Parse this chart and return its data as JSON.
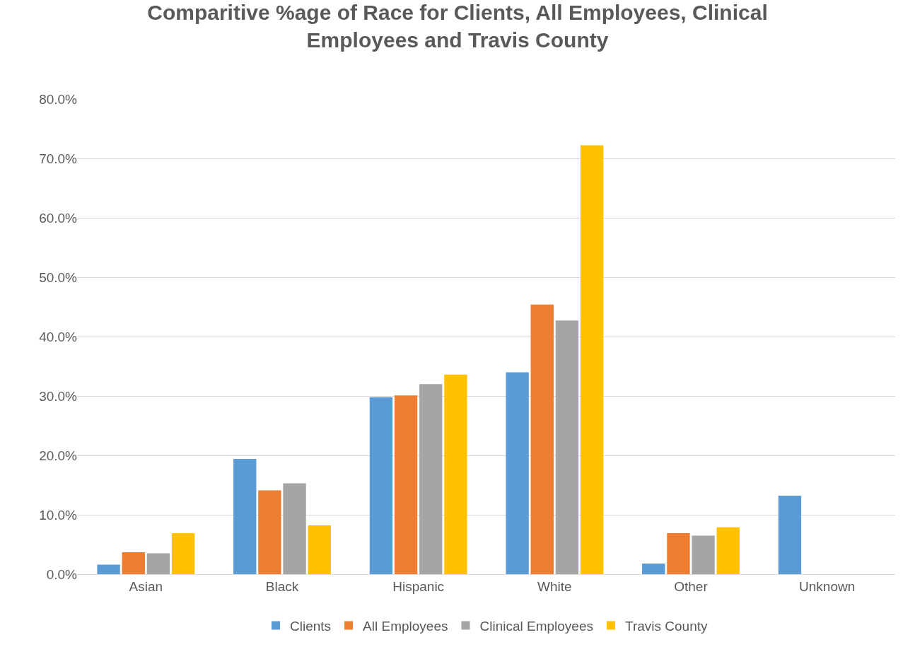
{
  "chart_data": {
    "type": "bar",
    "title": "Comparitive %age of Race for Clients, All Employees, Clinical\nEmployees and Travis County",
    "categories": [
      "Asian",
      "Black",
      "Hispanic",
      "White",
      "Other",
      "Unknown"
    ],
    "series": [
      {
        "name": "Clients",
        "color": "#5b9bd5",
        "values": [
          1.6,
          19.4,
          29.8,
          34.0,
          1.8,
          13.2
        ]
      },
      {
        "name": "All Employees",
        "color": "#ed7d31",
        "values": [
          3.7,
          14.1,
          30.1,
          45.4,
          6.9,
          null
        ]
      },
      {
        "name": "Clinical Employees",
        "color": "#a5a5a5",
        "values": [
          3.5,
          15.3,
          32.0,
          42.7,
          6.5,
          null
        ]
      },
      {
        "name": "Travis County",
        "color": "#ffc000",
        "values": [
          6.9,
          8.2,
          33.6,
          72.2,
          7.9,
          null
        ]
      }
    ],
    "ylim": [
      0,
      80
    ],
    "yticks": [
      {
        "value": 0,
        "label": "0.0%"
      },
      {
        "value": 10,
        "label": "10.0%"
      },
      {
        "value": 20,
        "label": "20.0%"
      },
      {
        "value": 30,
        "label": "30.0%"
      },
      {
        "value": 40,
        "label": "40.0%"
      },
      {
        "value": 50,
        "label": "50.0%"
      },
      {
        "value": 60,
        "label": "60.0%"
      },
      {
        "value": 70,
        "label": "70.0%"
      },
      {
        "value": 80,
        "label": "80.0%"
      }
    ],
    "grid": "y",
    "legend": "bottom"
  }
}
